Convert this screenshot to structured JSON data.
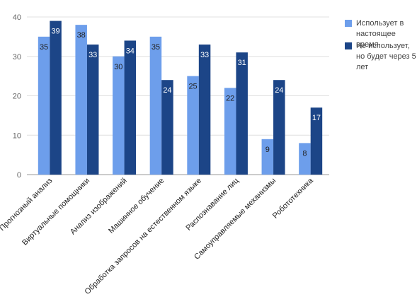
{
  "chart_data": {
    "type": "bar",
    "categories": [
      "Прогнозный анализ",
      "Виртуальные помощники",
      "Анализ изображений",
      "Машинное обучение",
      "Обработка запросов на естественном языке",
      "Распознавание лиц",
      "Самоуправляемые механизмы",
      "Робототехника"
    ],
    "series": [
      {
        "name": "Использует в настоящее время",
        "color": "#6d9eeb",
        "values": [
          35,
          38,
          30,
          35,
          25,
          22,
          9,
          8
        ]
      },
      {
        "name": "Не использует, но будет через 5 лет",
        "color": "#1c4587",
        "values": [
          39,
          33,
          34,
          24,
          33,
          31,
          24,
          17
        ]
      }
    ],
    "ylim": [
      0,
      40
    ],
    "yticks": [
      0,
      10,
      20,
      30,
      40
    ],
    "grid": true,
    "legend": "right"
  }
}
